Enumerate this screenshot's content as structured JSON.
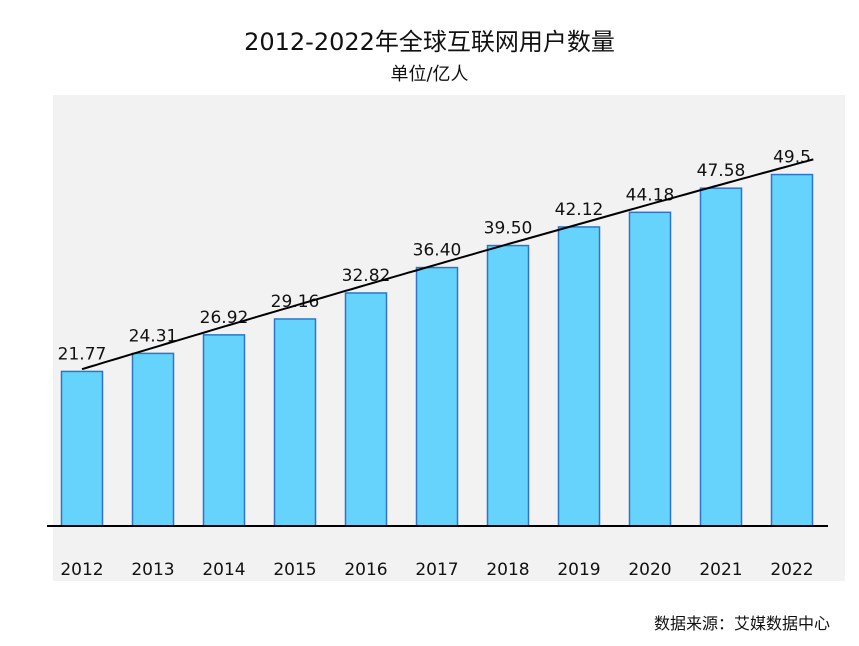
{
  "chart_data": {
    "type": "bar",
    "title": "2012-2022年全球互联网用户数量",
    "subtitle": "单位/亿人",
    "categories": [
      "2012",
      "2013",
      "2014",
      "2015",
      "2016",
      "2017",
      "2018",
      "2019",
      "2020",
      "2021",
      "2022"
    ],
    "values": [
      21.77,
      24.31,
      26.92,
      29.16,
      32.82,
      36.4,
      39.5,
      42.12,
      44.18,
      47.58,
      49.5
    ],
    "data_labels": [
      "21.77",
      "24.31",
      "26.92",
      "29.16",
      "32.82",
      "36.40",
      "39.50",
      "42.12",
      "44.18",
      "47.58",
      "49.5"
    ],
    "ylim": [
      0,
      60
    ],
    "grid": false,
    "trendline": true,
    "bar_color": "#66d3fc",
    "bar_edge_color": "#2e75c8",
    "trendline_color": "#000000",
    "background": "#f2f2f2"
  },
  "source": "数据来源：艾媒数据中心"
}
